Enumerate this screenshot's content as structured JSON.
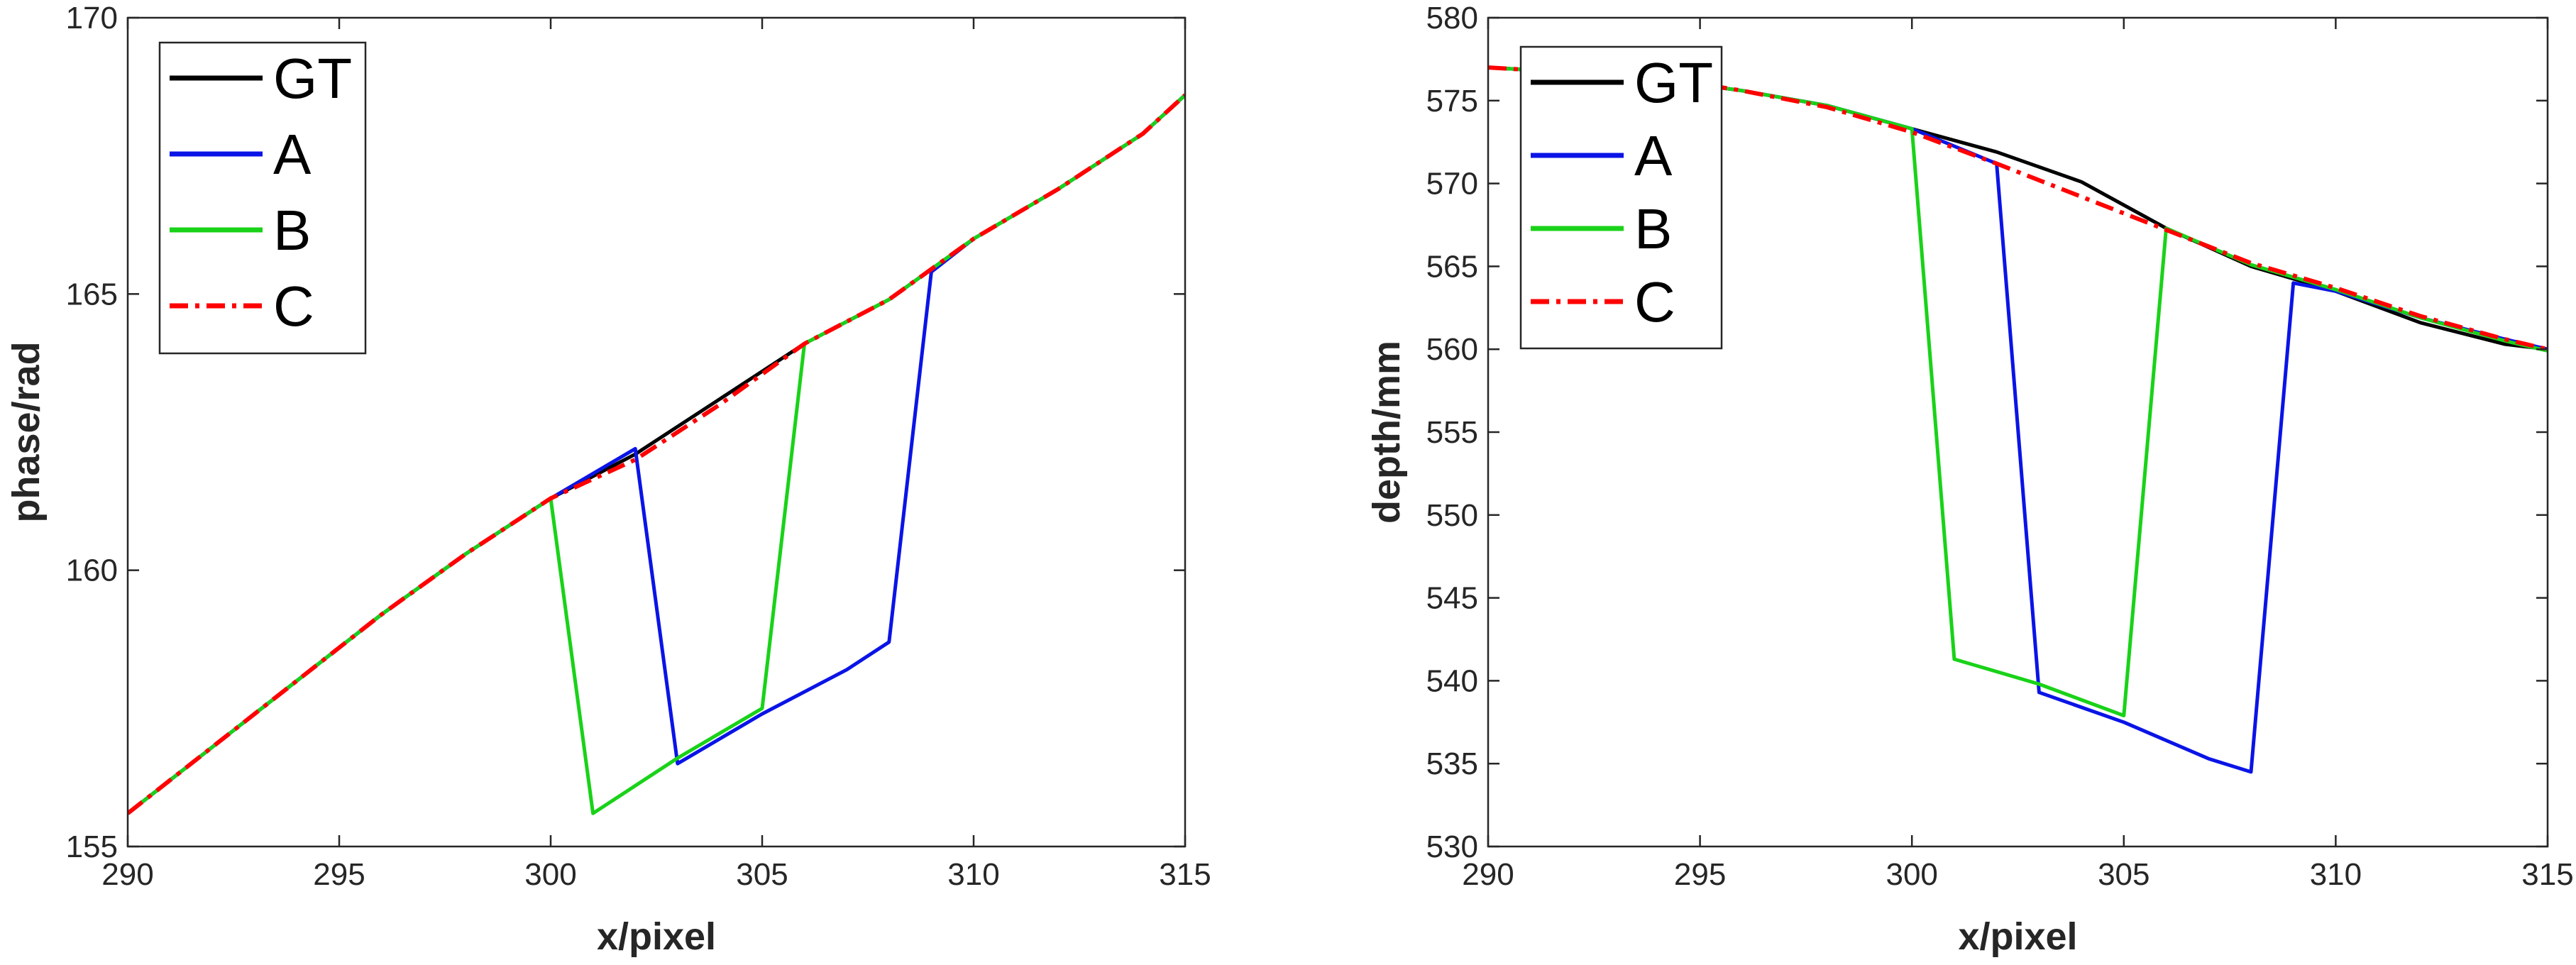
{
  "chart_data": [
    {
      "type": "line",
      "title": "",
      "xlabel": "x/pixel",
      "ylabel": "phase/rad",
      "xlim": [
        290,
        315
      ],
      "ylim": [
        155,
        170
      ],
      "xticks": [
        290,
        295,
        300,
        305,
        310,
        315
      ],
      "yticks": [
        155,
        160,
        165,
        170
      ],
      "grid": false,
      "legend_position": "top-left",
      "series": [
        {
          "name": "GT",
          "color": "#000000",
          "style": "solid",
          "x": [
            290,
            292,
            294,
            296,
            298,
            300,
            302,
            304,
            306,
            308,
            310,
            312,
            314,
            315
          ],
          "y": [
            155.6,
            156.8,
            158.0,
            159.2,
            160.3,
            161.3,
            162.1,
            163.1,
            164.1,
            164.9,
            166.0,
            166.9,
            167.9,
            168.6
          ]
        },
        {
          "name": "A",
          "color": "#0a14e6",
          "style": "solid",
          "x": [
            290,
            292,
            294,
            296,
            298,
            300,
            302,
            303,
            305,
            307,
            308,
            309,
            310,
            312,
            314,
            315
          ],
          "y": [
            155.6,
            156.8,
            158.0,
            159.2,
            160.3,
            161.3,
            162.2,
            156.5,
            157.4,
            158.2,
            158.7,
            165.4,
            166.0,
            166.9,
            167.9,
            168.6
          ]
        },
        {
          "name": "B",
          "color": "#19d219",
          "style": "solid",
          "x": [
            290,
            292,
            294,
            296,
            298,
            300,
            301,
            303,
            305,
            306,
            308,
            310,
            312,
            314,
            315
          ],
          "y": [
            155.6,
            156.8,
            158.0,
            159.2,
            160.3,
            161.3,
            155.6,
            156.6,
            157.5,
            164.1,
            164.9,
            166.0,
            166.9,
            167.9,
            168.6
          ]
        },
        {
          "name": "C",
          "color": "#ff0000",
          "style": "dashdot",
          "x": [
            290,
            292,
            294,
            296,
            298,
            300,
            302,
            304,
            306,
            308,
            310,
            312,
            314,
            315
          ],
          "y": [
            155.6,
            156.8,
            158.0,
            159.2,
            160.3,
            161.3,
            162.0,
            163.0,
            164.1,
            164.9,
            166.0,
            166.9,
            167.9,
            168.6
          ]
        }
      ]
    },
    {
      "type": "line",
      "title": "",
      "xlabel": "x/pixel",
      "ylabel": "depth/mm",
      "xlim": [
        290,
        315
      ],
      "ylim": [
        530,
        580
      ],
      "xticks": [
        290,
        295,
        300,
        305,
        310,
        315
      ],
      "yticks": [
        530,
        535,
        540,
        545,
        550,
        555,
        560,
        565,
        570,
        575,
        580
      ],
      "grid": false,
      "legend_position": "top-left",
      "series": [
        {
          "name": "GT",
          "color": "#000000",
          "style": "solid",
          "x": [
            290,
            292,
            294,
            296,
            298,
            300,
            302,
            304,
            306,
            308,
            310,
            312,
            314,
            315
          ],
          "y": [
            577.0,
            576.7,
            576.3,
            575.6,
            574.7,
            573.3,
            571.9,
            570.1,
            567.3,
            565.0,
            563.5,
            561.6,
            560.3,
            560.0
          ]
        },
        {
          "name": "A",
          "color": "#0a14e6",
          "style": "solid",
          "x": [
            290,
            292,
            294,
            296,
            298,
            300,
            302,
            303,
            305,
            307,
            308,
            309,
            310,
            312,
            314,
            315
          ],
          "y": [
            577.0,
            576.7,
            576.3,
            575.6,
            574.7,
            573.3,
            571.2,
            539.3,
            537.5,
            535.3,
            534.5,
            564.0,
            563.5,
            561.9,
            560.6,
            560.0
          ]
        },
        {
          "name": "B",
          "color": "#19d219",
          "style": "solid",
          "x": [
            290,
            292,
            294,
            296,
            298,
            300,
            301,
            303,
            305,
            306,
            308,
            310,
            312,
            314,
            315
          ],
          "y": [
            577.0,
            576.7,
            576.3,
            575.6,
            574.7,
            573.3,
            541.3,
            539.8,
            537.9,
            567.3,
            565.1,
            563.6,
            561.9,
            560.5,
            559.9
          ]
        },
        {
          "name": "C",
          "color": "#ff0000",
          "style": "dashdot",
          "x": [
            290,
            292,
            294,
            296,
            298,
            300,
            302,
            304,
            306,
            308,
            310,
            312,
            314,
            315
          ],
          "y": [
            577.0,
            576.7,
            576.4,
            575.6,
            574.6,
            573.1,
            571.2,
            569.2,
            567.2,
            565.2,
            563.7,
            562.0,
            560.6,
            560.0
          ]
        }
      ]
    }
  ]
}
